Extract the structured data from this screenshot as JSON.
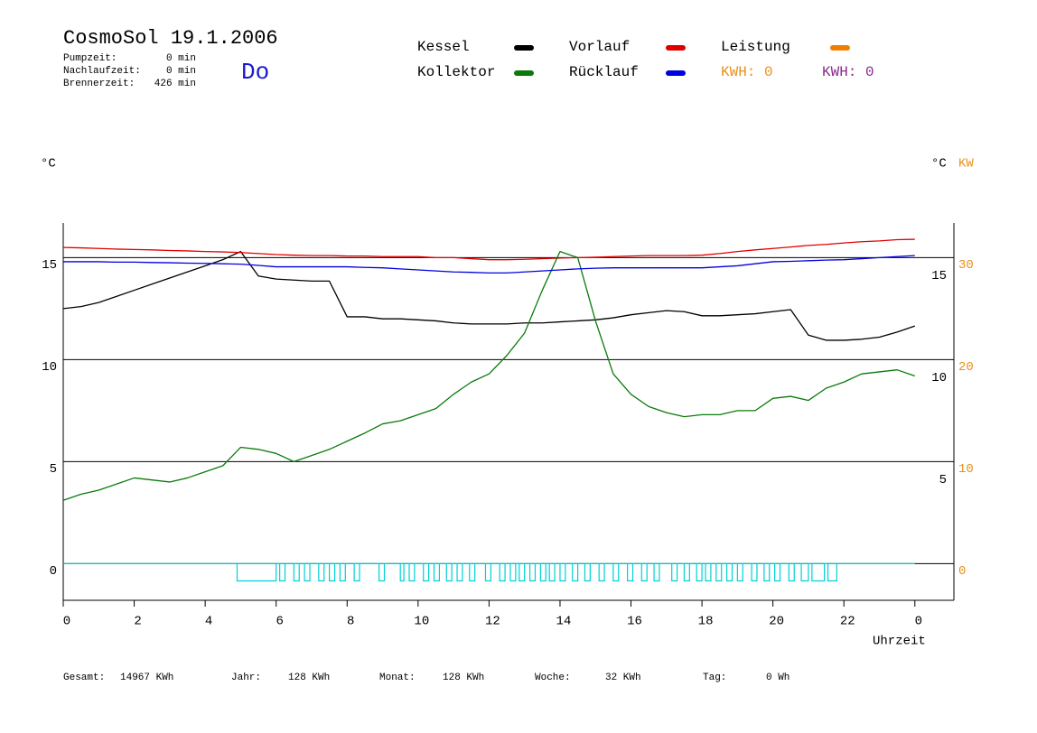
{
  "chart_data": {
    "type": "line",
    "title": "CosmoSol 19.1.2006",
    "day": "Do",
    "stats": [
      {
        "label": "Pumpzeit:",
        "value": "0 min"
      },
      {
        "label": "Nachlaufzeit:",
        "value": "0 min"
      },
      {
        "label": "Brennerzeit:",
        "value": "426 min"
      }
    ],
    "kwh": [
      {
        "label": "KWH: 0",
        "color": "#e8901c"
      },
      {
        "label": "KWH: 0",
        "color": "#8a2a8a"
      }
    ],
    "ylabel": "°C",
    "y2label_left": "°C",
    "y2label": "KW",
    "xlabel": "Uhrzeit",
    "xlim": [
      0,
      25.1
    ],
    "xticks": [
      0,
      2,
      4,
      6,
      8,
      10,
      12,
      14,
      16,
      18,
      20,
      22,
      {
        "value": 24,
        "label": "0"
      }
    ],
    "ylim": [
      -1.8,
      16.7
    ],
    "yticks": [
      0,
      5,
      10,
      15
    ],
    "y2lim": [
      -3.6,
      33.4
    ],
    "y2ticks": [
      0,
      10,
      20,
      30
    ],
    "grid": true,
    "x": [
      0,
      0.5,
      1,
      1.5,
      2,
      2.5,
      3,
      3.5,
      4,
      4.5,
      5,
      5.5,
      6,
      6.5,
      7,
      7.5,
      8,
      8.5,
      9,
      9.5,
      10,
      10.5,
      11,
      11.5,
      12,
      12.5,
      13,
      13.5,
      14,
      14.5,
      15,
      15.5,
      16,
      16.5,
      17,
      17.5,
      18,
      18.5,
      19,
      19.5,
      20,
      20.5,
      21,
      21.5,
      22,
      22.5,
      23,
      23.5,
      24
    ],
    "series": [
      {
        "name": "Kessel",
        "color": "#000000",
        "values": [
          12.5,
          12.6,
          12.8,
          13.1,
          13.4,
          13.7,
          14.0,
          14.3,
          14.6,
          14.9,
          15.3,
          14.1,
          13.95,
          13.9,
          13.85,
          13.85,
          12.1,
          12.1,
          12.0,
          12.0,
          11.95,
          11.9,
          11.8,
          11.75,
          11.75,
          11.75,
          11.8,
          11.8,
          11.85,
          11.9,
          11.95,
          12.05,
          12.2,
          12.3,
          12.4,
          12.35,
          12.15,
          12.15,
          12.2,
          12.25,
          12.35,
          12.45,
          11.2,
          10.95,
          10.95,
          11.0,
          11.1,
          11.35,
          11.65
        ]
      },
      {
        "name": "Vorlauf",
        "color": "#e00000",
        "values": [
          15.5,
          15.48,
          15.45,
          15.42,
          15.4,
          15.38,
          15.35,
          15.33,
          15.3,
          15.28,
          15.25,
          15.2,
          15.15,
          15.12,
          15.1,
          15.1,
          15.08,
          15.08,
          15.05,
          15.05,
          15.05,
          15.0,
          15.0,
          14.95,
          14.9,
          14.9,
          14.92,
          14.95,
          14.98,
          15.0,
          15.02,
          15.05,
          15.08,
          15.1,
          15.1,
          15.1,
          15.12,
          15.2,
          15.3,
          15.38,
          15.45,
          15.52,
          15.6,
          15.65,
          15.72,
          15.78,
          15.82,
          15.88,
          15.9
        ]
      },
      {
        "name": "Leistung",
        "color": "#f08000",
        "axis": "y2"
      },
      {
        "name": "Kollektor",
        "color": "#0a7a0a",
        "values": [
          3.1,
          3.4,
          3.6,
          3.9,
          4.2,
          4.1,
          4.0,
          4.2,
          4.5,
          4.8,
          5.7,
          5.6,
          5.4,
          5.0,
          5.3,
          5.6,
          6.0,
          6.4,
          6.85,
          7.0,
          7.3,
          7.6,
          8.3,
          8.9,
          9.3,
          10.2,
          11.3,
          13.4,
          15.3,
          15.0,
          11.9,
          9.3,
          8.3,
          7.7,
          7.4,
          7.2,
          7.3,
          7.3,
          7.5,
          7.5,
          8.1,
          8.2,
          8.0,
          8.6,
          8.9,
          9.3,
          9.4,
          9.5,
          9.2
        ]
      },
      {
        "name": "Rücklauf",
        "color": "#0000e0",
        "values": [
          14.8,
          14.8,
          14.8,
          14.78,
          14.78,
          14.76,
          14.75,
          14.73,
          14.72,
          14.7,
          14.68,
          14.62,
          14.55,
          14.55,
          14.55,
          14.55,
          14.55,
          14.52,
          14.5,
          14.45,
          14.4,
          14.35,
          14.3,
          14.28,
          14.25,
          14.25,
          14.3,
          14.35,
          14.4,
          14.45,
          14.48,
          14.5,
          14.5,
          14.5,
          14.5,
          14.5,
          14.5,
          14.55,
          14.6,
          14.7,
          14.8,
          14.82,
          14.85,
          14.88,
          14.9,
          14.95,
          15.0,
          15.05,
          15.1
        ]
      }
    ],
    "pump": {
      "color": "#00d0d8",
      "high": 0,
      "low": -0.85,
      "span": [
        0,
        24
      ],
      "intervals": [
        [
          4.9,
          6.0
        ],
        [
          6.1,
          6.25
        ],
        [
          6.5,
          6.65
        ],
        [
          6.8,
          6.95
        ],
        [
          7.2,
          7.35
        ],
        [
          7.5,
          7.65
        ],
        [
          7.8,
          7.95
        ],
        [
          8.2,
          8.35
        ],
        [
          8.9,
          9.05
        ],
        [
          9.5,
          9.6
        ],
        [
          9.75,
          9.9
        ],
        [
          10.15,
          10.3
        ],
        [
          10.45,
          10.6
        ],
        [
          10.8,
          10.95
        ],
        [
          11.1,
          11.25
        ],
        [
          11.45,
          11.6
        ],
        [
          11.9,
          12.05
        ],
        [
          12.3,
          12.45
        ],
        [
          12.6,
          12.75
        ],
        [
          12.85,
          13.0
        ],
        [
          13.15,
          13.3
        ],
        [
          13.45,
          13.6
        ],
        [
          13.7,
          13.85
        ],
        [
          14.0,
          14.15
        ],
        [
          14.35,
          14.5
        ],
        [
          14.7,
          14.85
        ],
        [
          15.1,
          15.25
        ],
        [
          15.5,
          15.65
        ],
        [
          15.9,
          16.05
        ],
        [
          16.3,
          16.45
        ],
        [
          16.65,
          16.8
        ],
        [
          17.15,
          17.3
        ],
        [
          17.5,
          17.65
        ],
        [
          17.85,
          18.0
        ],
        [
          18.1,
          18.25
        ],
        [
          18.4,
          18.55
        ],
        [
          18.7,
          18.85
        ],
        [
          19.0,
          19.15
        ],
        [
          19.4,
          19.55
        ],
        [
          19.75,
          19.9
        ],
        [
          20.05,
          20.2
        ],
        [
          20.45,
          20.6
        ],
        [
          20.8,
          21.0
        ],
        [
          21.1,
          21.45
        ],
        [
          21.55,
          21.8
        ]
      ]
    },
    "totals": [
      {
        "label": "Gesamt:",
        "value": "14967 KWh"
      },
      {
        "label": "Jahr:",
        "value": "128 KWh"
      },
      {
        "label": "Monat:",
        "value": "128 KWh"
      },
      {
        "label": "Woche:",
        "value": "32 KWh"
      },
      {
        "label": "Tag:",
        "value": "0 Wh"
      }
    ]
  }
}
